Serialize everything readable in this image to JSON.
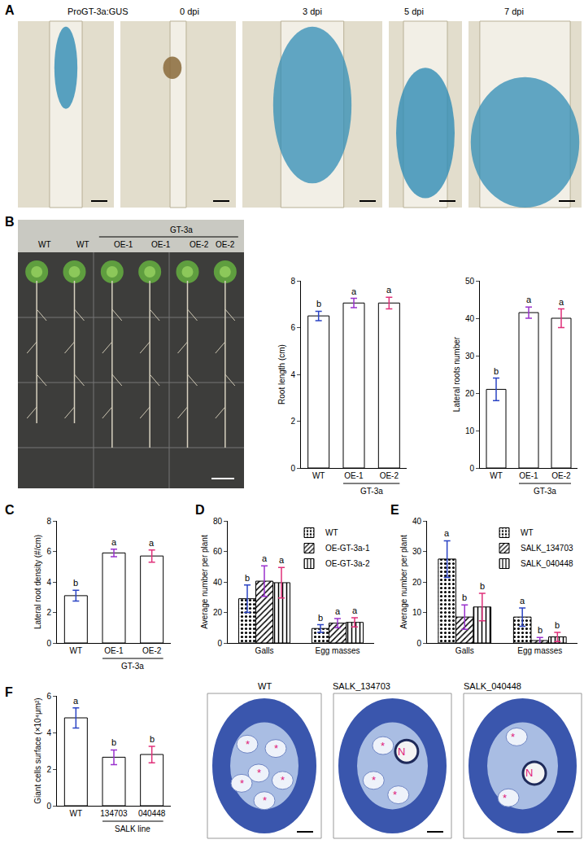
{
  "panel_letters": [
    "A",
    "B",
    "C",
    "D",
    "E",
    "F"
  ],
  "micrographs_A": [
    {
      "title": "ProGT-3a:GUS"
    },
    {
      "title": "0 dpi"
    },
    {
      "title": "3 dpi"
    },
    {
      "title": "5 dpi"
    },
    {
      "title": "7 dpi"
    }
  ],
  "plate_B": {
    "labels": [
      "WT",
      "WT",
      "OE-1",
      "OE-1",
      "OE-2",
      "OE-2"
    ],
    "group": {
      "label": "GT-3a",
      "labels": [
        "OE-1",
        "OE-2"
      ]
    }
  },
  "micrographs_F": [
    {
      "title": "WT",
      "marks": [
        "*",
        "*",
        "*",
        "*",
        "*",
        "*"
      ]
    },
    {
      "title": "SALK_134703",
      "marks": [
        "*",
        "*",
        "*",
        "N"
      ]
    },
    {
      "title": "SALK_040448",
      "marks": [
        "*",
        "*",
        "N"
      ]
    }
  ],
  "chart_data": [
    {
      "type": "bar",
      "y_label": "Root length (cm)",
      "categories": [
        "WT",
        "OE-1",
        "OE-2"
      ],
      "group": {
        "label": "GT-3a",
        "categories": [
          "OE-1",
          "OE-2"
        ]
      },
      "values": [
        6.5,
        7.05,
        7.05
      ],
      "errors": [
        0.2,
        0.2,
        0.25
      ],
      "letters": [
        "b",
        "a",
        "a"
      ],
      "colors": [
        "#2b44c4",
        "#9a32cd",
        "#e0307a"
      ],
      "ylim": [
        0,
        8
      ],
      "yticks": [
        0,
        2,
        4,
        6,
        8
      ]
    },
    {
      "type": "bar",
      "y_label": "Lateral roots number",
      "categories": [
        "WT",
        "OE-1",
        "OE-2"
      ],
      "group": {
        "label": "GT-3a",
        "categories": [
          "OE-1",
          "OE-2"
        ]
      },
      "values": [
        21,
        41.5,
        40
      ],
      "errors": [
        3,
        1.5,
        2.5
      ],
      "letters": [
        "b",
        "a",
        "a"
      ],
      "colors": [
        "#2b44c4",
        "#9a32cd",
        "#e0307a"
      ],
      "ylim": [
        0,
        50
      ],
      "yticks": [
        0,
        10,
        20,
        30,
        40,
        50
      ]
    },
    {
      "type": "bar",
      "y_label": "Lateral root density (#/cm)",
      "categories": [
        "WT",
        "OE-1",
        "OE-2"
      ],
      "group": {
        "label": "GT-3a",
        "categories": [
          "OE-1",
          "OE-2"
        ]
      },
      "values": [
        3.1,
        5.9,
        5.7
      ],
      "errors": [
        0.35,
        0.25,
        0.4
      ],
      "letters": [
        "b",
        "a",
        "a"
      ],
      "colors": [
        "#2b44c4",
        "#9a32cd",
        "#e0307a"
      ],
      "ylim": [
        0,
        8
      ],
      "yticks": [
        0,
        2,
        4,
        6,
        8
      ]
    },
    {
      "type": "bar",
      "y_label": "Average number per plant",
      "categories": [
        "Galls",
        "Egg masses"
      ],
      "legend": "top right",
      "series": [
        {
          "name": "WT",
          "color": "#2b44c4",
          "values": [
            29,
            9.5
          ],
          "errors": [
            9,
            2.5
          ],
          "letters": [
            "b",
            "b"
          ]
        },
        {
          "name": "OE-GT-3a-1",
          "color": "#9a32cd",
          "values": [
            40.5,
            13
          ],
          "errors": [
            10,
            3
          ],
          "letters": [
            "a",
            "a"
          ]
        },
        {
          "name": "OE-GT-3a-2",
          "color": "#e0307a",
          "values": [
            39.5,
            13.5
          ],
          "errors": [
            10,
            3
          ],
          "letters": [
            "a",
            "a"
          ]
        }
      ],
      "ylim": [
        0,
        80
      ],
      "yticks": [
        0,
        20,
        40,
        60,
        80
      ]
    },
    {
      "type": "bar",
      "y_label": "Average number per plant",
      "categories": [
        "Galls",
        "Egg masses"
      ],
      "legend": "top right",
      "series": [
        {
          "name": "WT",
          "color": "#2b44c4",
          "values": [
            27.5,
            8.5
          ],
          "errors": [
            6,
            3
          ],
          "letters": [
            "a",
            "a"
          ]
        },
        {
          "name": "SALK_134703",
          "color": "#9a32cd",
          "values": [
            8.5,
            0.8
          ],
          "errors": [
            4,
            1
          ],
          "letters": [
            "b",
            "b"
          ]
        },
        {
          "name": "SALK_040448",
          "color": "#e0307a",
          "values": [
            11.8,
            2
          ],
          "errors": [
            4.5,
            1.5
          ],
          "letters": [
            "b",
            "b"
          ]
        }
      ],
      "ylim": [
        0,
        40
      ],
      "yticks": [
        0,
        10,
        20,
        30,
        40
      ]
    },
    {
      "type": "bar",
      "y_label": "Giant cells surface (×10⁴μm²)",
      "categories": [
        "WT",
        "134703",
        "040448"
      ],
      "group": {
        "label": "SALK line",
        "categories": [
          "134703",
          "040448"
        ]
      },
      "values": [
        4.8,
        2.65,
        2.8
      ],
      "errors": [
        0.55,
        0.4,
        0.45
      ],
      "letters": [
        "a",
        "b",
        "b"
      ],
      "colors": [
        "#2b44c4",
        "#9a32cd",
        "#e0307a"
      ],
      "ylim": [
        0,
        6
      ],
      "yticks": [
        0,
        2,
        4,
        6
      ]
    }
  ]
}
